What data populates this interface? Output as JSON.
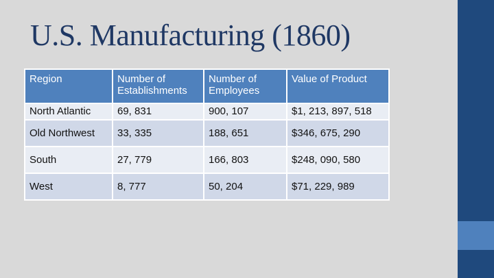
{
  "title": "U.S. Manufacturing (1860)",
  "table": {
    "headers": [
      "Region",
      "Number of Establishments",
      "Number of Employees",
      "Value of Product"
    ],
    "rows": [
      [
        "North Atlantic",
        "69, 831",
        "900, 107",
        "$1, 213, 897, 518"
      ],
      [
        "Old Northwest",
        "33, 335",
        "188, 651",
        "$346, 675, 290"
      ],
      [
        "South",
        "27, 779",
        "166, 803",
        "$248, 090, 580"
      ],
      [
        "West",
        "8, 777",
        "50, 204",
        "$71, 229, 989"
      ]
    ]
  },
  "colors": {
    "title": "#1f3864",
    "header_bg": "#4f81bd",
    "row_light": "#e9edf4",
    "row_dark": "#d0d8e8",
    "side_bar": "#1f497d",
    "side_accent": "#4f81bd"
  }
}
